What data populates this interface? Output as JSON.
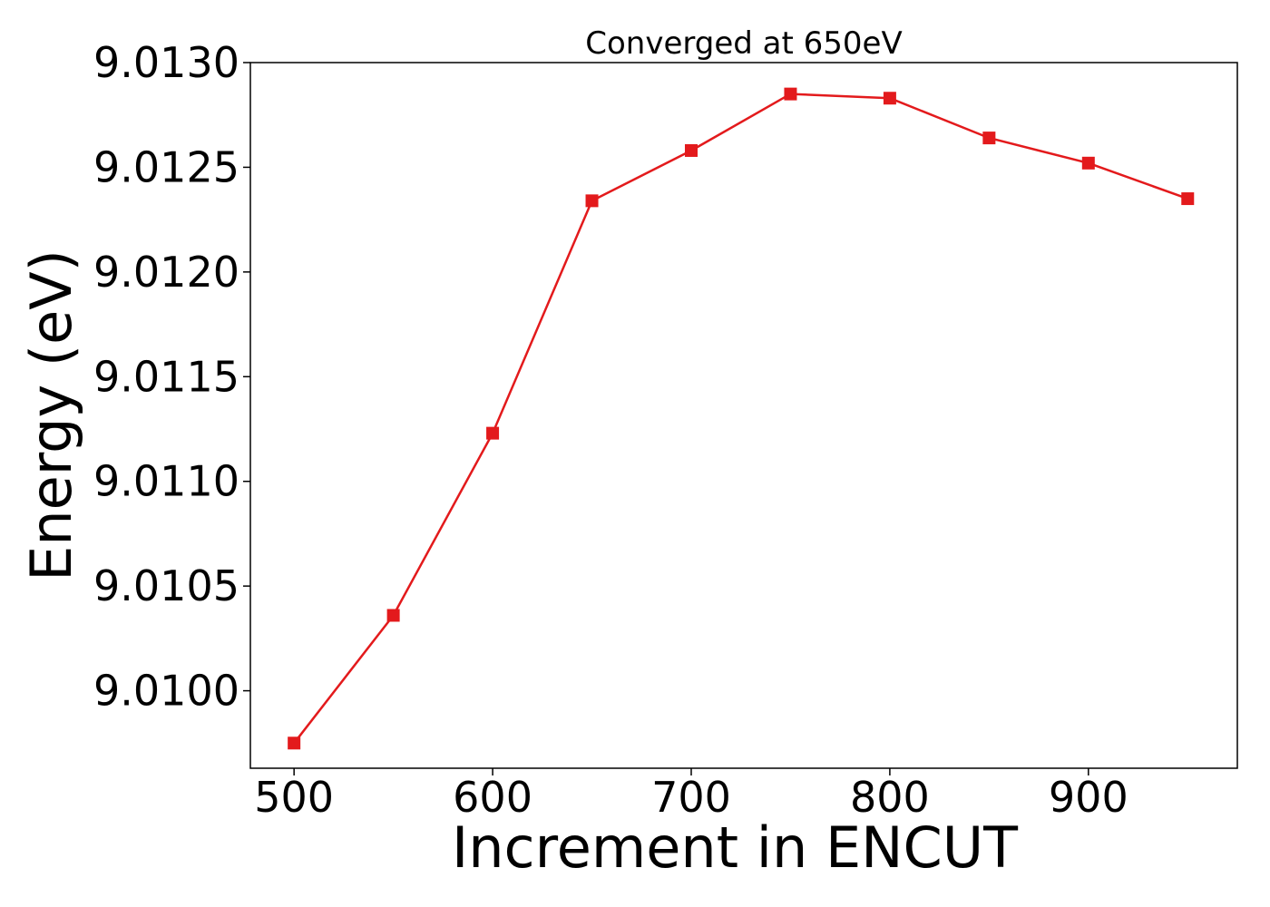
{
  "chart_data": {
    "type": "line",
    "title": "Converged at 650eV",
    "xlabel": "Increment in ENCUT",
    "ylabel": "Energy (eV)",
    "xlim": [
      478,
      975
    ],
    "ylim": [
      9.00963,
      9.013
    ],
    "xticks": [
      500,
      600,
      700,
      800,
      900
    ],
    "xtick_labels": [
      "500",
      "600",
      "700",
      "800",
      "900"
    ],
    "yticks": [
      9.01,
      9.0105,
      9.011,
      9.0115,
      9.012,
      9.0125,
      9.013
    ],
    "ytick_labels": [
      "9.0100",
      "9.0105",
      "9.0110",
      "9.0115",
      "9.0120",
      "9.0125",
      "9.0130"
    ],
    "grid": false,
    "legend": false,
    "series": [
      {
        "marker": "square",
        "color": "#e31a1c",
        "x": [
          500,
          550,
          600,
          650,
          700,
          750,
          800,
          850,
          900,
          950
        ],
        "y": [
          9.00975,
          9.01036,
          9.01123,
          9.01234,
          9.01258,
          9.01285,
          9.01283,
          9.01264,
          9.01252,
          9.01235
        ]
      }
    ]
  }
}
